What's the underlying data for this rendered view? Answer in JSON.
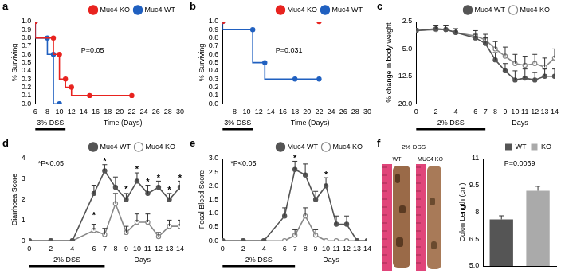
{
  "chart_data": [
    {
      "panel": "a",
      "type": "line",
      "line_style": "step",
      "y_label": "% Surviving",
      "x_label": "Time (Days)",
      "treatment": {
        "label": "3% DSS",
        "start": 6,
        "end": 11
      },
      "xlim": [
        6,
        30
      ],
      "xticks": [
        6,
        8,
        10,
        12,
        14,
        16,
        18,
        20,
        22,
        24,
        26,
        28,
        30
      ],
      "ylim": [
        0,
        1
      ],
      "yticks": [
        {
          "value": 0,
          "label": "0.0"
        },
        {
          "value": 0.1,
          "label": "0.1"
        },
        {
          "value": 0.2,
          "label": "0.2"
        },
        {
          "value": 0.3,
          "label": "0.3"
        },
        {
          "value": 0.4,
          "label": "0.4"
        },
        {
          "value": 0.5,
          "label": "0.5"
        },
        {
          "value": 0.6,
          "label": "0.6"
        },
        {
          "value": 0.7,
          "label": "0.7"
        },
        {
          "value": 0.8,
          "label": "0.8"
        },
        {
          "value": 0.9,
          "label": "0.9"
        },
        {
          "value": 1,
          "label": "1.0"
        }
      ],
      "grid": false,
      "legend": "top right",
      "series": [
        {
          "name": "Muc4 KO",
          "color": "#e8231f",
          "marker": "circle",
          "x": [
            6,
            9,
            10,
            11,
            12,
            15,
            22
          ],
          "values": [
            1,
            0.8,
            0.6,
            0.3,
            0.2,
            0.1,
            0.1
          ]
        },
        {
          "name": "Muc4 WT",
          "color": "#2060c0",
          "marker": "circle",
          "x": [
            6,
            8,
            9,
            10
          ],
          "values": [
            1,
            0.8,
            0.6,
            0
          ]
        }
      ],
      "annotations": [
        {
          "text": "P=0.05",
          "x": 15.5,
          "y": 0.65
        }
      ]
    },
    {
      "panel": "b",
      "type": "line",
      "line_style": "step",
      "y_label": "% Surviving",
      "x_label": "Time (Days)",
      "treatment": {
        "label": "3% DSS",
        "start": 6,
        "end": 11
      },
      "xlim": [
        6,
        30
      ],
      "xticks": [
        8,
        10,
        12,
        14,
        16,
        18,
        20,
        22,
        24,
        26,
        28,
        30
      ],
      "ylim": [
        0,
        1
      ],
      "yticks": [
        {
          "value": 0,
          "label": "0.0"
        },
        {
          "value": 0.1,
          "label": "0.1"
        },
        {
          "value": 0.2,
          "label": "0.2"
        },
        {
          "value": 0.3,
          "label": "0.3"
        },
        {
          "value": 0.4,
          "label": "0.4"
        },
        {
          "value": 0.5,
          "label": "0.5"
        },
        {
          "value": 0.6,
          "label": "0.6"
        },
        {
          "value": 0.7,
          "label": "0.7"
        },
        {
          "value": 0.8,
          "label": "0.8"
        },
        {
          "value": 0.9,
          "label": "0.9"
        },
        {
          "value": 1,
          "label": "1.0"
        }
      ],
      "grid": false,
      "legend": "top right",
      "series": [
        {
          "name": "Muc4 KO",
          "color": "#e8231f",
          "marker": "circle",
          "x": [
            6,
            22
          ],
          "values": [
            1,
            1
          ]
        },
        {
          "name": "Muc4 WT",
          "color": "#2060c0",
          "marker": "circle",
          "x": [
            6,
            11,
            13,
            18,
            22
          ],
          "values": [
            1,
            0.9,
            0.5,
            0.3,
            0.3
          ]
        }
      ],
      "annotations": [
        {
          "text": "P=0.031",
          "x": 17,
          "y": 0.65
        }
      ]
    },
    {
      "panel": "c",
      "type": "line",
      "y_label": "% change in body weight",
      "x_label": "Days",
      "treatment": {
        "label": "2% DSS",
        "start": 0,
        "end": 7
      },
      "xlim": [
        0,
        14
      ],
      "xticks": [
        0,
        2,
        4,
        6,
        7,
        8,
        9,
        10,
        11,
        12,
        13,
        14
      ],
      "ylim": [
        -20,
        2.5
      ],
      "yticks": [
        {
          "value": -20,
          "label": "-20.0"
        },
        -12.5,
        {
          "value": -5,
          "label": "-5.0"
        },
        2.5
      ],
      "grid": false,
      "legend": "top right",
      "x": [
        0,
        2,
        3,
        4,
        6,
        7,
        8,
        9,
        10,
        11,
        12,
        13,
        14
      ],
      "series": [
        {
          "name": "Muc4 WT",
          "color": "#555555",
          "marker": "circle",
          "values": [
            0,
            0.5,
            0.3,
            -0.5,
            -2,
            -3.5,
            -8,
            -11,
            -13.5,
            -13,
            -13.5,
            -12.5,
            -12.5
          ],
          "errors": [
            0.5,
            1,
            1,
            1,
            1,
            1.5,
            2,
            2,
            2.5,
            2.5,
            2,
            2,
            2
          ]
        },
        {
          "name": "Muc4 KO",
          "color": "#888888",
          "marker": "open circle",
          "values": [
            0,
            0.3,
            0.3,
            -0.5,
            -1.5,
            -2.5,
            -5,
            -7,
            -9,
            -9.5,
            -9,
            -10,
            -7.5
          ],
          "errors": [
            0.5,
            1,
            1,
            1,
            1.5,
            1.5,
            2,
            2.5,
            2.5,
            2.5,
            2.5,
            2.5,
            2.5
          ]
        }
      ]
    },
    {
      "panel": "d",
      "type": "line",
      "y_label": "Diarrhoea Score",
      "x_label": "Days",
      "treatment": {
        "label": "2% DSS",
        "start": 0,
        "end": 7
      },
      "xlim": [
        0,
        14
      ],
      "xticks": [
        0,
        2,
        4,
        6,
        7,
        8,
        9,
        10,
        11,
        12,
        13,
        14
      ],
      "ylim": [
        0,
        4
      ],
      "yticks": [
        0,
        1,
        2,
        3,
        4
      ],
      "grid": false,
      "legend": "top right",
      "x": [
        0,
        2,
        4,
        6,
        7,
        8,
        9,
        10,
        11,
        12,
        13,
        14
      ],
      "series": [
        {
          "name": "Muc4 WT",
          "color": "#555555",
          "marker": "circle",
          "values": [
            0,
            0,
            0,
            2.3,
            3.4,
            2.6,
            2.0,
            2.9,
            2.3,
            2.6,
            2.0,
            2.6
          ],
          "errors": [
            0,
            0,
            0,
            0.4,
            0.3,
            0.5,
            0.3,
            0.4,
            0.4,
            0.3,
            0.3,
            0.3
          ]
        },
        {
          "name": "Muc4 KO",
          "color": "#888888",
          "marker": "open circle",
          "values": [
            0,
            0,
            0,
            0.5,
            0.3,
            1.8,
            0.4,
            0.9,
            0.9,
            0.2,
            0.7,
            0.7
          ],
          "errors": [
            0,
            0,
            0,
            0.3,
            0.3,
            0.5,
            0.3,
            0.4,
            0.4,
            0.2,
            0.3,
            0.3
          ]
        }
      ],
      "annotations": [
        {
          "text": "*P<0.05",
          "x": 2,
          "y": 3.75
        },
        {
          "text": "*",
          "x": 6,
          "y": 1.2
        },
        {
          "text": "*",
          "x": 7,
          "y": 3.85
        },
        {
          "text": "*",
          "x": 9,
          "y": 2.5
        },
        {
          "text": "*",
          "x": 10,
          "y": 3.45
        },
        {
          "text": "*",
          "x": 11,
          "y": 2.85
        },
        {
          "text": "*",
          "x": 12,
          "y": 3.05
        },
        {
          "text": "*",
          "x": 13,
          "y": 2.45
        },
        {
          "text": "*",
          "x": 14,
          "y": 3.05
        }
      ]
    },
    {
      "panel": "e",
      "type": "line",
      "y_label": "Fecal Blood Score",
      "x_label": "Days",
      "treatment": {
        "label": "2% DSS",
        "start": 0,
        "end": 7
      },
      "xlim": [
        0,
        14
      ],
      "xticks": [
        0,
        2,
        4,
        6,
        7,
        8,
        9,
        10,
        11,
        12,
        13,
        14
      ],
      "ylim": [
        0,
        3
      ],
      "yticks": [
        {
          "value": 0,
          "label": "0.0"
        },
        0.5,
        {
          "value": 1,
          "label": "1.0"
        },
        1.5,
        {
          "value": 2,
          "label": "2.0"
        },
        2.5,
        {
          "value": 3,
          "label": "3.0"
        }
      ],
      "grid": false,
      "legend": "top right",
      "x": [
        0,
        2,
        4,
        6,
        7,
        8,
        9,
        10,
        11,
        12,
        13,
        14
      ],
      "series": [
        {
          "name": "Muc4 WT",
          "color": "#555555",
          "marker": "circle",
          "values": [
            0,
            0,
            0,
            0.9,
            2.6,
            2.4,
            1.5,
            2.0,
            0.6,
            0.6,
            0,
            0
          ],
          "errors": [
            0,
            0,
            0,
            0.3,
            0.3,
            0.4,
            0.3,
            0.3,
            0.3,
            0.3,
            0,
            0
          ]
        },
        {
          "name": "Muc4 KO",
          "color": "#888888",
          "marker": "open circle",
          "values": [
            0,
            0,
            0,
            0,
            0.2,
            0.9,
            0.2,
            0,
            0,
            0,
            0,
            0
          ],
          "errors": [
            0,
            0,
            0,
            0,
            0.2,
            0.3,
            0.2,
            0,
            0,
            0,
            0,
            0
          ]
        }
      ],
      "annotations": [
        {
          "text": "*P<0.05",
          "x": 2,
          "y": 2.8
        },
        {
          "text": "*",
          "x": 7,
          "y": 3.0
        },
        {
          "text": "*",
          "x": 10,
          "y": 2.4
        }
      ]
    },
    {
      "panel": "f",
      "type": "bar",
      "y_label": "Colon Length (cm)",
      "categories": [
        "WT",
        "KO"
      ],
      "values": [
        7.6,
        9.2
      ],
      "errors": [
        0.2,
        0.25
      ],
      "colors": [
        "#555555",
        "#aaaaaa"
      ],
      "ylim": [
        5,
        11
      ],
      "yticks": [
        {
          "value": 5,
          "label": "5.0"
        },
        6.5,
        8,
        9.5,
        11
      ],
      "grid": false,
      "legend": "top right",
      "tick_labels": "y",
      "annotations": [
        {
          "text": "P=0.0069",
          "x": 0.5,
          "y": 10.7
        }
      ]
    }
  ],
  "photo": {
    "title": "2% DSS",
    "labels": [
      "WT",
      "MUC4 KO"
    ]
  }
}
